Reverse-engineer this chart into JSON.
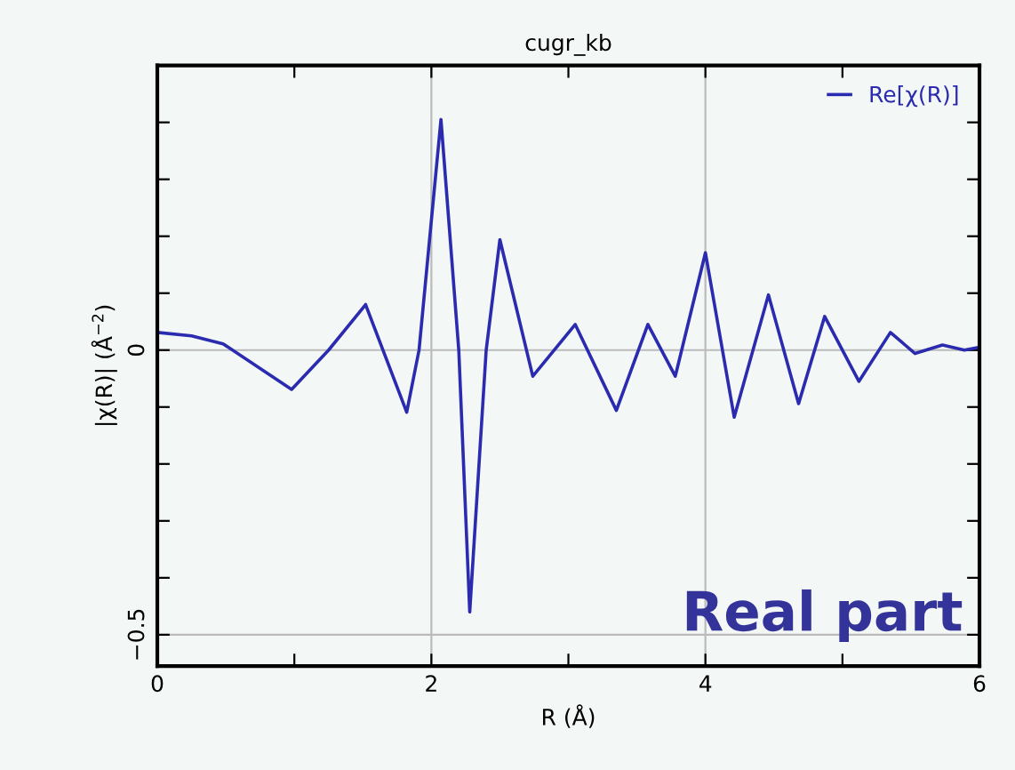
{
  "chart_data": {
    "type": "line",
    "title": "cugr_kb",
    "xlabel": "R (Å)",
    "ylabel": "|χ(R)| (Å$^{−2}$)",
    "x": [
      0,
      0.25,
      0.48,
      0.98,
      1.25,
      1.52,
      1.82,
      1.91,
      2.07,
      2.2,
      2.28,
      2.4,
      2.5,
      2.74,
      3.05,
      3.35,
      3.58,
      3.78,
      4.0,
      4.21,
      4.46,
      4.68,
      4.87,
      5.12,
      5.35,
      5.53,
      5.73,
      5.89,
      6.0
    ],
    "series": [
      {
        "name": "Re[χ(R)]",
        "color": "#2b2bb0",
        "values": [
          0.031,
          0.025,
          0.011,
          -0.069,
          0,
          0.08,
          -0.109,
          0,
          0.405,
          0,
          -0.46,
          0,
          0.194,
          -0.046,
          0.045,
          -0.106,
          0.045,
          -0.046,
          0.171,
          -0.118,
          0.097,
          -0.094,
          0.059,
          -0.055,
          0.031,
          -0.006,
          0.009,
          0,
          0.005
        ]
      }
    ],
    "xlim": [
      0,
      6
    ],
    "ylim": [
      -0.555,
      0.5
    ],
    "xticks": [
      0,
      {
        "value": 1,
        "label": null
      },
      2,
      {
        "value": 3,
        "label": null
      },
      4,
      {
        "value": 5,
        "label": null
      },
      6
    ],
    "yticks": [
      {
        "value": -0.5,
        "label": "−0.5"
      },
      {
        "value": -0.4,
        "label": null
      },
      {
        "value": -0.3,
        "label": null
      },
      {
        "value": -0.2,
        "label": null
      },
      {
        "value": -0.1,
        "label": null
      },
      0,
      {
        "value": 0.1,
        "label": null
      },
      {
        "value": 0.2,
        "label": null
      },
      {
        "value": 0.3,
        "label": null
      },
      {
        "value": 0.4,
        "label": null
      }
    ],
    "grid": true,
    "legend": "top right",
    "marker": "none",
    "line_style": "solid",
    "annotations": [
      "Real part"
    ]
  }
}
